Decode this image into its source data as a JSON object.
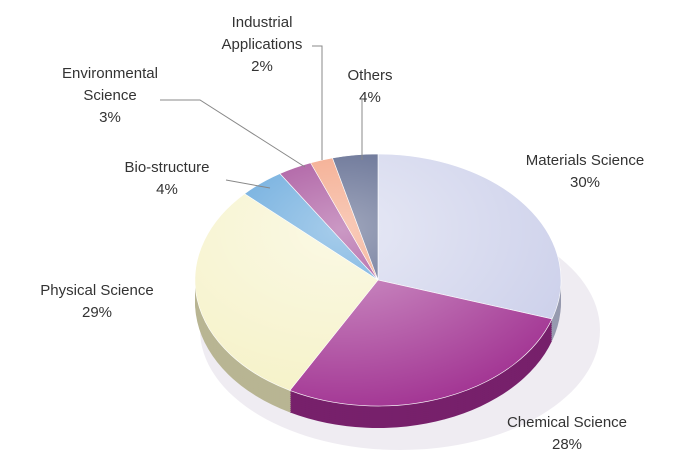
{
  "chart_data": {
    "type": "pie",
    "categories": [
      "Materials Science",
      "Chemical Science",
      "Physical Science",
      "Bio-structure",
      "Environmental Science",
      "Industrial Applications",
      "Others"
    ],
    "values": [
      30,
      28,
      29,
      4,
      3,
      2,
      4
    ],
    "value_labels": [
      "30%",
      "28%",
      "29%",
      "4%",
      "3%",
      "2%",
      "4%"
    ],
    "colors": [
      "#c9cde9",
      "#9e2b8e",
      "#f5f1c4",
      "#3b8fd2",
      "#8b1b7c",
      "#f08a62",
      "#2b3a6b"
    ]
  }
}
